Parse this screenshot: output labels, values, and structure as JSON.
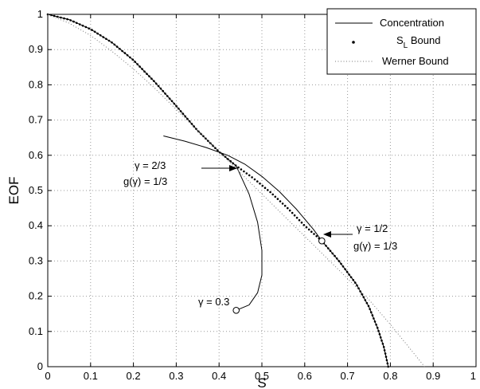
{
  "chart_data": {
    "type": "line",
    "xlabel": "S",
    "ylabel": "EOF",
    "xlim": [
      0,
      1
    ],
    "ylim": [
      0,
      1
    ],
    "xticks": [
      "0",
      "0.1",
      "0.2",
      "0.3",
      "0.4",
      "0.5",
      "0.6",
      "0.7",
      "0.8",
      "0.9",
      "1"
    ],
    "yticks": [
      "0",
      "0.1",
      "0.2",
      "0.3",
      "0.4",
      "0.5",
      "0.6",
      "0.7",
      "0.8",
      "0.9",
      "1"
    ],
    "grid": true,
    "legend_position": "top-right",
    "legend": [
      {
        "label": "Concentration",
        "style": "solid"
      },
      {
        "label_main": "S",
        "label_sub": "L",
        "label_rest": " Bound",
        "style": "dots"
      },
      {
        "label": "Werner Bound",
        "style": "dotted"
      }
    ],
    "series": [
      {
        "name": "Concentration",
        "style": "solid",
        "x": [
          0.0,
          0.05,
          0.1,
          0.15,
          0.2,
          0.25,
          0.3,
          0.35,
          0.4,
          0.44,
          0.47,
          0.49,
          0.5,
          0.5,
          0.49,
          0.47,
          0.44
        ],
        "y": [
          1.0,
          0.985,
          0.958,
          0.92,
          0.87,
          0.808,
          0.74,
          0.67,
          0.61,
          0.57,
          0.49,
          0.41,
          0.33,
          0.26,
          0.21,
          0.175,
          0.16
        ]
      },
      {
        "name": "Concentration",
        "style": "solid",
        "x": [
          0.27,
          0.32,
          0.37,
          0.42,
          0.46,
          0.5,
          0.54,
          0.58,
          0.62,
          0.64,
          0.68,
          0.72,
          0.75,
          0.77,
          0.785,
          0.795
        ],
        "y": [
          0.655,
          0.64,
          0.622,
          0.6,
          0.575,
          0.54,
          0.498,
          0.448,
          0.39,
          0.357,
          0.3,
          0.235,
          0.17,
          0.11,
          0.055,
          0.0
        ]
      },
      {
        "name": "S_L Bound",
        "style": "dots",
        "x": [
          0.0,
          0.05,
          0.1,
          0.15,
          0.2,
          0.25,
          0.3,
          0.35,
          0.4,
          0.44,
          0.48,
          0.52,
          0.56,
          0.6,
          0.64,
          0.68,
          0.72,
          0.75,
          0.77,
          0.785,
          0.795
        ],
        "y": [
          1.0,
          0.985,
          0.958,
          0.92,
          0.87,
          0.808,
          0.74,
          0.67,
          0.61,
          0.57,
          0.535,
          0.495,
          0.45,
          0.4,
          0.357,
          0.3,
          0.235,
          0.17,
          0.11,
          0.055,
          0.0
        ]
      },
      {
        "name": "Werner Bound",
        "style": "dotted",
        "x": [
          0.0,
          0.05,
          0.1,
          0.15,
          0.2,
          0.25,
          0.3,
          0.35,
          0.4,
          0.45,
          0.5,
          0.55,
          0.6,
          0.65,
          0.7,
          0.75,
          0.8,
          0.85,
          0.88
        ],
        "y": [
          1.0,
          0.975,
          0.94,
          0.895,
          0.845,
          0.79,
          0.73,
          0.67,
          0.61,
          0.55,
          0.49,
          0.43,
          0.37,
          0.31,
          0.25,
          0.19,
          0.12,
          0.045,
          0.0
        ]
      }
    ],
    "markers": [
      {
        "x": 0.44,
        "y": 0.16
      },
      {
        "x": 0.64,
        "y": 0.357
      }
    ],
    "annotations": [
      {
        "line1": "γ = 2/3",
        "line2": "g(γ) = 1/3",
        "arrow_to": [
          0.445,
          0.58
        ]
      },
      {
        "line1": "γ = 1/2",
        "line2": "g(γ) = 1/3",
        "arrow_to": [
          0.645,
          0.357
        ]
      },
      {
        "line1": "γ = 0.3",
        "line2": ""
      }
    ]
  }
}
